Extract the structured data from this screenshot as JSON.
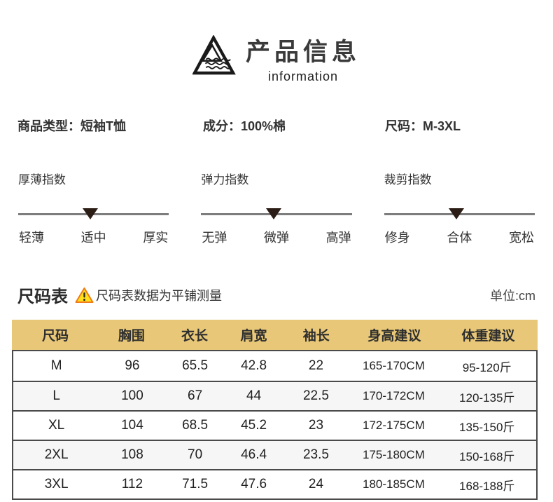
{
  "header": {
    "title": "产品信息",
    "subtitle": "information",
    "logo_icon": "triangle-waves-logo"
  },
  "product_attrs": [
    {
      "text": "商品类型：短袖T恤"
    },
    {
      "text": "成分：100%棉"
    },
    {
      "text": "尺码：M-3XL"
    }
  ],
  "indices": [
    {
      "title": "厚薄指数",
      "options": [
        "轻薄",
        "适中",
        "厚实"
      ],
      "selected": "适中"
    },
    {
      "title": "弹力指数",
      "options": [
        "无弹",
        "微弹",
        "高弹"
      ],
      "selected": "微弹"
    },
    {
      "title": "裁剪指数",
      "options": [
        "修身",
        "合体",
        "宽松"
      ],
      "selected": "合体"
    }
  ],
  "size_chart": {
    "title": "尺码表",
    "warning_icon": "warning-triangle",
    "note": "尺码表数据为平铺测量",
    "unit": "单位:cm",
    "columns": [
      "尺码",
      "胸围",
      "衣长",
      "肩宽",
      "袖长",
      "身高建议",
      "体重建议"
    ],
    "rows": [
      [
        "M",
        "96",
        "65.5",
        "42.8",
        "22",
        "165-170CM",
        "95-120斤"
      ],
      [
        "L",
        "100",
        "67",
        "44",
        "22.5",
        "170-172CM",
        "120-135斤"
      ],
      [
        "XL",
        "104",
        "68.5",
        "45.2",
        "23",
        "172-175CM",
        "135-150斤"
      ],
      [
        "2XL",
        "108",
        "70",
        "46.4",
        "23.5",
        "175-180CM",
        "150-168斤"
      ],
      [
        "3XL",
        "112",
        "71.5",
        "47.6",
        "24",
        "180-185CM",
        "168-188斤"
      ]
    ]
  },
  "colors": {
    "table_header_bg": "#e8c878",
    "table_border": "#4a4a4a",
    "row_alt_bg": "#f6f6f6",
    "slider_line": "#7d7d7d",
    "slider_marker": "#2b1d15",
    "warning_fill": "#ffe11a",
    "warning_stroke": "#ef7b1a"
  }
}
